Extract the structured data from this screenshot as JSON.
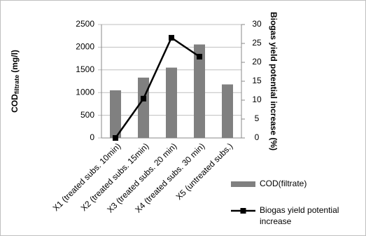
{
  "chart_data": {
    "type": "bar-line",
    "categories": [
      "X1 (treated subs. 10min)",
      "X2 (treated subs. 15min)",
      "X3 (treated subs. 20 min)",
      "X4 (treated subs. 30 min)",
      "X5 (untreated subs.)"
    ],
    "ylabel": {
      "text": "COD",
      "subscript": "filtrate",
      "suffix": "(mg/l)"
    },
    "y2label": "Biogas yield potential increase (%)",
    "series": [
      {
        "name": "COD(filtrate)",
        "type": "bar",
        "color": "#808080",
        "values": [
          1050,
          1330,
          1550,
          2060,
          1180
        ]
      },
      {
        "name": "Biogas yield potential increase",
        "type": "line",
        "axis": "y2",
        "color": "#000000",
        "values": [
          0,
          10.4,
          26.5,
          21.5,
          null
        ]
      }
    ],
    "ylim": [
      0,
      2500
    ],
    "yticks": [
      0,
      500,
      1000,
      1500,
      2000,
      2500
    ],
    "y2lim": [
      0,
      30
    ],
    "y2ticks": [
      0,
      5,
      10,
      15,
      20,
      25,
      30
    ],
    "grid": true,
    "legend": "right"
  }
}
